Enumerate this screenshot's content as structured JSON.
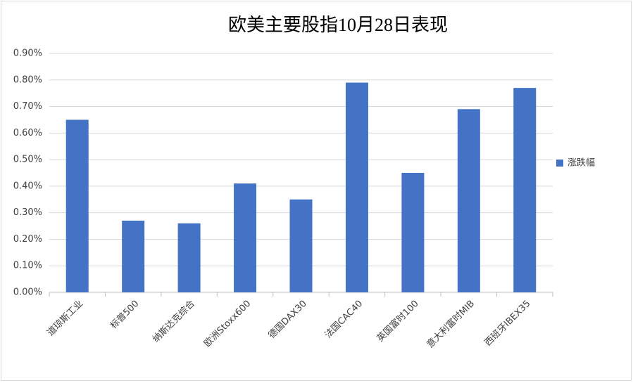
{
  "chart_data": {
    "type": "bar",
    "title": "欧美主要股指10月28日表现",
    "categories": [
      "道琼斯工业",
      "标普500",
      "纳斯达克综合",
      "欧洲Stoxx600",
      "德国DAX30",
      "法国CAC40",
      "英国富时100",
      "意大利富时MIB",
      "西班牙IBEX35"
    ],
    "series": [
      {
        "name": "涨跌幅",
        "color": "#4472c4",
        "values": [
          0.65,
          0.27,
          0.26,
          0.41,
          0.35,
          0.79,
          0.45,
          0.69,
          0.77
        ]
      }
    ],
    "ylim": [
      0,
      0.9
    ],
    "yticks": [
      {
        "value": 0,
        "label": "0.00%"
      },
      {
        "value": 0.1,
        "label": "0.10%"
      },
      {
        "value": 0.2,
        "label": "0.20%"
      },
      {
        "value": 0.3,
        "label": "0.30%"
      },
      {
        "value": 0.4,
        "label": "0.40%"
      },
      {
        "value": 0.5,
        "label": "0.50%"
      },
      {
        "value": 0.6,
        "label": "0.60%"
      },
      {
        "value": 0.7,
        "label": "0.70%"
      },
      {
        "value": 0.8,
        "label": "0.80%"
      },
      {
        "value": 0.9,
        "label": "0.90%"
      }
    ],
    "grid": true,
    "legend": "right"
  }
}
